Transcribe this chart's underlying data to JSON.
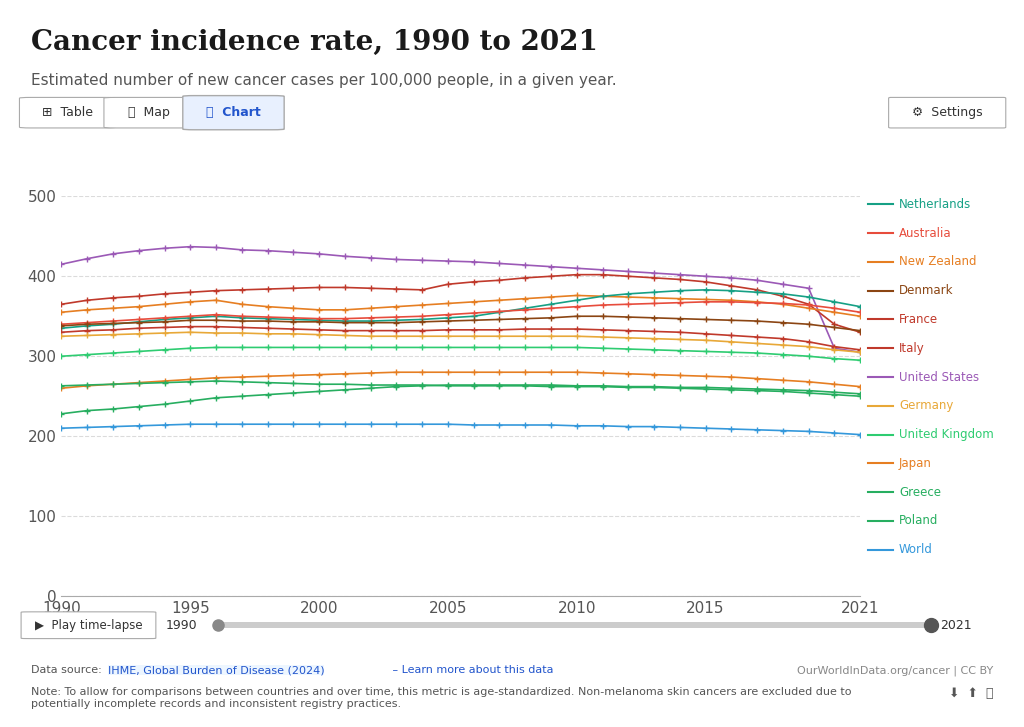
{
  "title": "Cancer incidence rate, 1990 to 2021",
  "subtitle": "Estimated number of new cancer cases per 100,000 people, in a given year.",
  "ylabel": "",
  "xlabel": "",
  "years": [
    1990,
    1991,
    1992,
    1993,
    1994,
    1995,
    1996,
    1997,
    1998,
    1999,
    2000,
    2001,
    2002,
    2003,
    2004,
    2005,
    2006,
    2007,
    2008,
    2009,
    2010,
    2011,
    2012,
    2013,
    2014,
    2015,
    2016,
    2017,
    2018,
    2019,
    2020,
    2021
  ],
  "series": {
    "United States": {
      "color": "#9B59B6",
      "data": [
        415,
        422,
        428,
        432,
        435,
        437,
        436,
        433,
        432,
        430,
        428,
        425,
        423,
        421,
        420,
        419,
        418,
        416,
        414,
        412,
        410,
        408,
        406,
        404,
        402,
        400,
        398,
        395,
        390,
        385,
        310,
        305
      ]
    },
    "France": {
      "color": "#C0392B",
      "data": [
        365,
        370,
        373,
        375,
        378,
        380,
        382,
        383,
        384,
        385,
        386,
        386,
        385,
        384,
        383,
        390,
        393,
        395,
        398,
        400,
        402,
        402,
        400,
        398,
        396,
        393,
        388,
        383,
        375,
        365,
        340,
        330
      ]
    },
    "New Zealand": {
      "color": "#E67E22",
      "data": [
        355,
        358,
        360,
        362,
        365,
        368,
        370,
        365,
        362,
        360,
        358,
        358,
        360,
        362,
        364,
        366,
        368,
        370,
        372,
        374,
        376,
        375,
        374,
        373,
        372,
        371,
        370,
        368,
        365,
        360,
        355,
        350
      ]
    },
    "Netherlands": {
      "color": "#16A085",
      "data": [
        335,
        338,
        340,
        343,
        346,
        348,
        350,
        348,
        347,
        346,
        345,
        344,
        344,
        345,
        346,
        348,
        350,
        355,
        360,
        365,
        370,
        375,
        378,
        380,
        382,
        383,
        382,
        380,
        378,
        374,
        368,
        362
      ]
    },
    "Australia": {
      "color": "#E74C3C",
      "data": [
        340,
        342,
        344,
        346,
        348,
        350,
        352,
        350,
        349,
        348,
        347,
        347,
        348,
        349,
        350,
        352,
        354,
        356,
        358,
        360,
        362,
        364,
        365,
        366,
        367,
        368,
        368,
        367,
        366,
        364,
        360,
        355
      ]
    },
    "Denmark": {
      "color": "#8B4513",
      "data": [
        338,
        340,
        341,
        342,
        343,
        345,
        345,
        344,
        344,
        343,
        343,
        342,
        342,
        342,
        343,
        344,
        345,
        346,
        347,
        348,
        350,
        350,
        349,
        348,
        347,
        346,
        345,
        344,
        342,
        340,
        336,
        332
      ]
    },
    "Italy": {
      "color": "#C0392B",
      "data": [
        330,
        332,
        333,
        335,
        336,
        337,
        337,
        336,
        335,
        334,
        333,
        332,
        332,
        332,
        332,
        333,
        333,
        333,
        334,
        334,
        334,
        333,
        332,
        331,
        330,
        328,
        326,
        324,
        322,
        318,
        312,
        308
      ]
    },
    "Germany": {
      "color": "#E8A838",
      "data": [
        325,
        326,
        327,
        328,
        329,
        330,
        329,
        329,
        328,
        328,
        327,
        326,
        325,
        325,
        325,
        325,
        325,
        325,
        325,
        325,
        325,
        324,
        323,
        322,
        321,
        320,
        318,
        316,
        314,
        312,
        308,
        305
      ]
    },
    "United Kingdom": {
      "color": "#2ECC71",
      "data": [
        300,
        302,
        304,
        306,
        308,
        310,
        311,
        311,
        311,
        311,
        311,
        311,
        311,
        311,
        311,
        311,
        311,
        311,
        311,
        311,
        311,
        310,
        309,
        308,
        307,
        306,
        305,
        304,
        302,
        300,
        297,
        295
      ]
    },
    "Greece": {
      "color": "#27AE60",
      "data": [
        228,
        232,
        234,
        237,
        240,
        244,
        248,
        250,
        252,
        254,
        256,
        258,
        260,
        262,
        263,
        264,
        264,
        264,
        264,
        264,
        263,
        263,
        262,
        262,
        261,
        261,
        260,
        259,
        258,
        257,
        255,
        253
      ]
    },
    "Japan": {
      "color": "#E67E22",
      "data": [
        260,
        263,
        265,
        267,
        269,
        271,
        273,
        274,
        275,
        276,
        277,
        278,
        279,
        280,
        280,
        280,
        280,
        280,
        280,
        280,
        280,
        279,
        278,
        277,
        276,
        275,
        274,
        272,
        270,
        268,
        265,
        262
      ]
    },
    "Poland": {
      "color": "#27AE60",
      "data": [
        263,
        264,
        265,
        266,
        267,
        268,
        269,
        268,
        267,
        266,
        265,
        265,
        264,
        264,
        264,
        263,
        263,
        263,
        263,
        262,
        262,
        262,
        261,
        261,
        260,
        259,
        258,
        257,
        256,
        254,
        252,
        250
      ]
    },
    "World": {
      "color": "#3498DB",
      "data": [
        210,
        211,
        212,
        213,
        214,
        215,
        215,
        215,
        215,
        215,
        215,
        215,
        215,
        215,
        215,
        215,
        214,
        214,
        214,
        214,
        213,
        213,
        212,
        212,
        211,
        210,
        209,
        208,
        207,
        206,
        204,
        202
      ]
    }
  },
  "ylim": [
    0,
    500
  ],
  "yticks": [
    0,
    100,
    200,
    300,
    400,
    500
  ],
  "xlim": [
    1990,
    2021
  ],
  "xticks": [
    1990,
    1995,
    2000,
    2005,
    2010,
    2015,
    2021
  ],
  "bg_color": "#ffffff",
  "grid_color": "#cccccc",
  "owid_logo_bg": "#C0392B",
  "footer_source": "Data source: IHME, Global Burden of Disease (2024) – Learn more about this data",
  "footer_right": "OurWorldInData.org/cancer | CC BY",
  "footer_note": "Note: To allow for comparisons between countries and over time, this metric is age-standardized. Non-melanoma skin cancers are excluded due to\npotentially incomplete records and inconsistent registry practices."
}
